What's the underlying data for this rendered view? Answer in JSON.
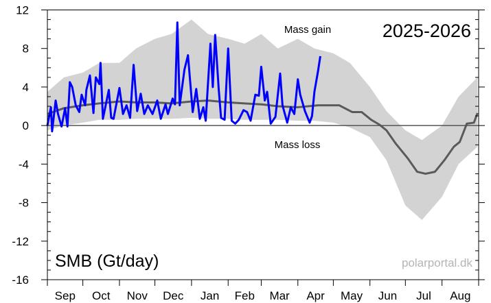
{
  "chart_data": {
    "type": "line",
    "title": "2025-2026",
    "ylabel": "SMB (Gt/day)",
    "xlabel": "",
    "ylim": [
      -16,
      12
    ],
    "xlim": [
      "2025-09-01",
      "2026-08-31"
    ],
    "yticks": [
      12,
      8,
      4,
      0,
      -4,
      -8,
      -12,
      -16
    ],
    "xtick_labels": [
      "Sep",
      "Oct",
      "Nov",
      "Dec",
      "Jan",
      "Feb",
      "Mar",
      "Apr",
      "May",
      "Jun",
      "Jul",
      "Aug"
    ],
    "grid": false,
    "annotations": {
      "gain": "Mass gain",
      "loss": "Mass loss",
      "watermark": "polarportal.dk"
    },
    "colors": {
      "current": "#0000ff",
      "mean": "#5a5a5a",
      "range": "#d3d3d3",
      "zero": "#555555"
    },
    "series": [
      {
        "role": "current-season",
        "x": [
          "2025-09-01",
          "2025-09-04",
          "2025-09-05",
          "2025-09-08",
          "2025-09-10",
          "2025-09-13",
          "2025-09-16",
          "2025-09-18",
          "2025-09-20",
          "2025-09-22",
          "2025-09-25",
          "2025-09-28",
          "2025-09-30",
          "2025-10-03",
          "2025-10-04",
          "2025-10-07",
          "2025-10-10",
          "2025-10-12",
          "2025-10-15",
          "2025-10-16",
          "2025-10-18",
          "2025-10-23",
          "2025-10-25",
          "2025-10-27",
          "2025-11-01",
          "2025-11-04",
          "2025-11-07",
          "2025-11-10",
          "2025-11-13",
          "2025-11-16",
          "2025-11-19",
          "2025-11-22",
          "2025-11-25",
          "2025-11-29",
          "2025-12-03",
          "2025-12-06",
          "2025-12-10",
          "2025-12-12",
          "2025-12-16",
          "2025-12-18",
          "2025-12-20",
          "2025-12-22",
          "2025-12-26",
          "2025-12-29",
          "2026-01-02",
          "2026-01-05",
          "2026-01-08",
          "2026-01-11",
          "2026-01-13",
          "2026-01-17",
          "2026-01-19",
          "2026-01-21",
          "2026-01-24",
          "2026-01-26",
          "2026-01-29",
          "2026-02-01",
          "2026-02-04",
          "2026-02-07",
          "2026-02-10",
          "2026-02-14",
          "2026-02-17",
          "2026-02-20",
          "2026-02-24",
          "2026-02-27",
          "2026-03-01",
          "2026-03-04",
          "2026-03-06",
          "2026-03-09",
          "2026-03-13",
          "2026-03-17",
          "2026-03-19",
          "2026-03-23",
          "2026-03-26",
          "2026-03-29",
          "2026-04-01",
          "2026-04-03",
          "2026-04-07",
          "2026-04-11",
          "2026-04-13",
          "2026-04-15",
          "2026-04-18",
          "2026-04-20"
        ],
        "y": [
          0.0,
          1.9,
          -0.6,
          2.6,
          1.2,
          -0.1,
          1.8,
          -0.1,
          4.5,
          4.0,
          2.1,
          1.4,
          3.2,
          2.1,
          3.7,
          5.2,
          1.3,
          5.0,
          4.3,
          6.5,
          0.7,
          3.7,
          0.8,
          0.7,
          3.9,
          1.2,
          2.1,
          0.8,
          6.3,
          1.5,
          3.3,
          1.2,
          2.1,
          1.2,
          2.6,
          0.7,
          2.2,
          1.2,
          2.8,
          2.2,
          10.7,
          2.1,
          5.8,
          7.3,
          1.4,
          3.8,
          0.7,
          1.9,
          0.5,
          8.5,
          4.0,
          9.4,
          3.8,
          0.8,
          0.6,
          8.0,
          0.5,
          0.2,
          0.6,
          1.6,
          1.4,
          0.5,
          3.2,
          3.1,
          6.1,
          2.6,
          3.5,
          0.2,
          0.9,
          5.4,
          2.1,
          0.3,
          1.9,
          1.2,
          4.8,
          3.2,
          1.5,
          0.3,
          1.0,
          3.5,
          5.6,
          7.2
        ]
      },
      {
        "role": "mean",
        "x": [
          "2025-09-01",
          "2025-09-15",
          "2025-10-01",
          "2025-10-15",
          "2025-11-01",
          "2025-11-15",
          "2025-12-01",
          "2025-12-15",
          "2026-01-01",
          "2026-01-15",
          "2026-02-01",
          "2026-02-15",
          "2026-03-01",
          "2026-03-15",
          "2026-04-01",
          "2026-04-18",
          "2026-05-06",
          "2026-05-17",
          "2026-05-25",
          "2026-06-02",
          "2026-06-09",
          "2026-06-15",
          "2026-06-23",
          "2026-07-03",
          "2026-07-11",
          "2026-07-18",
          "2026-07-26",
          "2026-08-03",
          "2026-08-11",
          "2026-08-16",
          "2026-08-22",
          "2026-08-28",
          "2026-08-31"
        ],
        "y": [
          1.2,
          1.8,
          2.1,
          2.3,
          2.5,
          2.4,
          2.4,
          2.3,
          2.5,
          2.6,
          2.4,
          2.3,
          2.2,
          2.0,
          1.9,
          2.1,
          2.1,
          1.4,
          1.4,
          0.6,
          0.1,
          -0.5,
          -1.9,
          -3.4,
          -4.8,
          -5.0,
          -4.8,
          -3.6,
          -2.2,
          -1.7,
          0.2,
          0.3,
          1.3
        ]
      },
      {
        "role": "range",
        "x": [
          "2025-09-01",
          "2025-09-15",
          "2025-10-01",
          "2025-10-15",
          "2025-11-01",
          "2025-11-15",
          "2025-12-01",
          "2025-12-15",
          "2026-01-01",
          "2026-01-15",
          "2026-02-01",
          "2026-02-15",
          "2026-03-01",
          "2026-03-15",
          "2026-04-01",
          "2026-04-15",
          "2026-05-01",
          "2026-05-15",
          "2026-06-01",
          "2026-06-15",
          "2026-07-01",
          "2026-07-15",
          "2026-08-01",
          "2026-08-15",
          "2026-08-31"
        ],
        "max": [
          3.5,
          5.0,
          5.5,
          6.5,
          6.5,
          8.0,
          9.0,
          9.5,
          11.0,
          9.5,
          9.0,
          8.5,
          9.5,
          8.0,
          9.0,
          8.0,
          7.5,
          6.5,
          4.0,
          1.5,
          -0.5,
          -1.5,
          0.0,
          3.0,
          5.0
        ],
        "min": [
          -0.5,
          0.0,
          0.3,
          0.6,
          0.6,
          0.7,
          0.7,
          0.7,
          0.8,
          0.7,
          0.7,
          0.6,
          0.6,
          0.6,
          0.5,
          0.5,
          0.3,
          -0.2,
          -1.2,
          -3.6,
          -8.3,
          -9.8,
          -7.4,
          -4.0,
          -2.2
        ]
      }
    ]
  }
}
